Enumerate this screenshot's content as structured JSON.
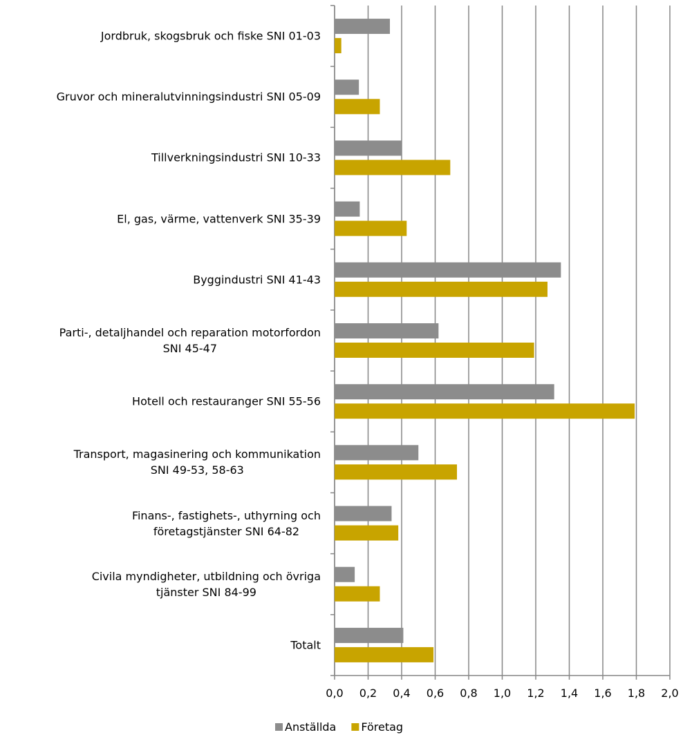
{
  "chart_data": {
    "type": "hbar",
    "categories": [
      "Jordbruk, skogsbruk och fiske SNI 01-03",
      "Gruvor och mineralutvinningsindustri SNI 05-09",
      "Tillverkningsindustri SNI 10-33",
      "El, gas, värme, vattenverk SNI 35-39",
      "Byggindustri SNI 41-43",
      "Parti-, detaljhandel och reparation motorfordon\nSNI 45-47",
      "Hotell och restauranger SNI 55-56",
      "Transport, magasinering och kommunikation\nSNI 49-53, 58-63",
      "Finans-, fastighets-, uthyrning och\nföretagstjänster SNI 64-82",
      "Civila myndigheter, utbildning och övriga\ntjänster SNI 84-99",
      "Totalt"
    ],
    "series": [
      {
        "name": "Anställda",
        "color": "#8c8c8c",
        "values": [
          0.33,
          0.145,
          0.4,
          0.15,
          1.35,
          0.62,
          1.31,
          0.5,
          0.34,
          0.12,
          0.41
        ]
      },
      {
        "name": "Företag",
        "color": "#c8a400",
        "values": [
          0.04,
          0.27,
          0.69,
          0.43,
          1.27,
          1.19,
          1.79,
          0.73,
          0.38,
          0.27,
          0.59
        ]
      }
    ],
    "xlim": [
      0,
      2
    ],
    "xticks": [
      {
        "value": 0,
        "label": "0,0"
      },
      {
        "value": 0.2,
        "label": "0,2"
      },
      {
        "value": 0.4,
        "label": "0,4"
      },
      {
        "value": 0.6,
        "label": "0,6"
      },
      {
        "value": 0.8,
        "label": "0,8"
      },
      {
        "value": 1.0,
        "label": "1,0"
      },
      {
        "value": 1.2,
        "label": "1,2"
      },
      {
        "value": 1.4,
        "label": "1,4"
      },
      {
        "value": 1.6,
        "label": "1,6"
      },
      {
        "value": 1.8,
        "label": "1,8"
      },
      {
        "value": 2.0,
        "label": "2,0"
      }
    ],
    "grid": true,
    "legend": "bottom"
  }
}
